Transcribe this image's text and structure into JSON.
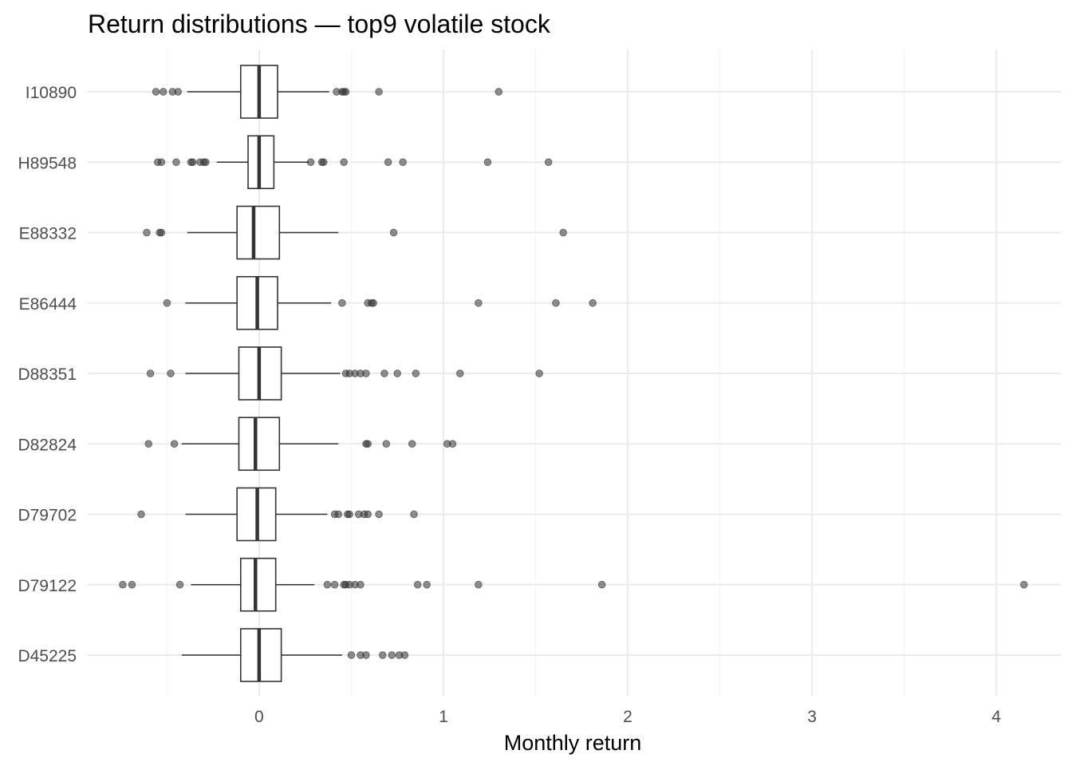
{
  "chart_data": {
    "type": "boxplot",
    "title": "Return distributions — top9 volatile stock",
    "xlabel": "Monthly return",
    "ylabel": "",
    "xlim": [
      -0.93,
      4.35
    ],
    "x_ticks": [
      0,
      1,
      2,
      3,
      4
    ],
    "grid": true,
    "orientation": "horizontal",
    "colors": {
      "box_stroke": "#333333",
      "outlier": "#333333",
      "grid_major": "#ebebeb",
      "grid_minor": "#f5f5f5"
    },
    "categories": [
      "I10890",
      "H89548",
      "E88332",
      "E86444",
      "D88351",
      "D82824",
      "D79702",
      "D79122",
      "D45225"
    ],
    "series": [
      {
        "category": "I10890",
        "whisker_low": -0.39,
        "q1": -0.1,
        "median": 0.0,
        "q3": 0.1,
        "whisker_high": 0.38,
        "outliers": [
          -0.56,
          -0.52,
          -0.47,
          -0.44,
          0.42,
          0.45,
          0.46,
          0.47,
          0.65,
          1.3
        ]
      },
      {
        "category": "H89548",
        "whisker_low": -0.23,
        "q1": -0.06,
        "median": 0.0,
        "q3": 0.08,
        "whisker_high": 0.27,
        "outliers": [
          -0.55,
          -0.53,
          -0.45,
          -0.37,
          -0.36,
          -0.32,
          -0.3,
          -0.29,
          0.28,
          0.34,
          0.35,
          0.46,
          0.7,
          0.78,
          1.24,
          1.57
        ]
      },
      {
        "category": "E88332",
        "whisker_low": -0.39,
        "q1": -0.12,
        "median": -0.03,
        "q3": 0.11,
        "whisker_high": 0.43,
        "outliers": [
          -0.61,
          -0.54,
          -0.53,
          0.73,
          1.65
        ]
      },
      {
        "category": "E86444",
        "whisker_low": -0.4,
        "q1": -0.12,
        "median": -0.01,
        "q3": 0.1,
        "whisker_high": 0.39,
        "outliers": [
          -0.5,
          0.45,
          0.59,
          0.61,
          0.62,
          1.19,
          1.61,
          1.81
        ]
      },
      {
        "category": "D88351",
        "whisker_low": -0.4,
        "q1": -0.11,
        "median": 0.0,
        "q3": 0.12,
        "whisker_high": 0.44,
        "outliers": [
          -0.59,
          -0.48,
          0.47,
          0.49,
          0.52,
          0.55,
          0.58,
          0.68,
          0.75,
          0.85,
          1.09,
          1.52
        ]
      },
      {
        "category": "D82824",
        "whisker_low": -0.42,
        "q1": -0.11,
        "median": -0.02,
        "q3": 0.11,
        "whisker_high": 0.43,
        "outliers": [
          -0.6,
          -0.46,
          0.58,
          0.59,
          0.69,
          0.83,
          1.02,
          1.05
        ]
      },
      {
        "category": "D79702",
        "whisker_low": -0.4,
        "q1": -0.12,
        "median": -0.01,
        "q3": 0.09,
        "whisker_high": 0.37,
        "outliers": [
          -0.64,
          0.41,
          0.43,
          0.48,
          0.49,
          0.54,
          0.57,
          0.59,
          0.65,
          0.84
        ]
      },
      {
        "category": "D79122",
        "whisker_low": -0.37,
        "q1": -0.1,
        "median": -0.02,
        "q3": 0.09,
        "whisker_high": 0.3,
        "outliers": [
          -0.74,
          -0.69,
          -0.43,
          0.37,
          0.41,
          0.46,
          0.47,
          0.49,
          0.52,
          0.55,
          0.86,
          0.91,
          1.19,
          1.86,
          4.15
        ]
      },
      {
        "category": "D45225",
        "whisker_low": -0.42,
        "q1": -0.1,
        "median": 0.0,
        "q3": 0.12,
        "whisker_high": 0.45,
        "outliers": [
          0.5,
          0.55,
          0.58,
          0.67,
          0.72,
          0.76,
          0.79
        ]
      }
    ]
  }
}
